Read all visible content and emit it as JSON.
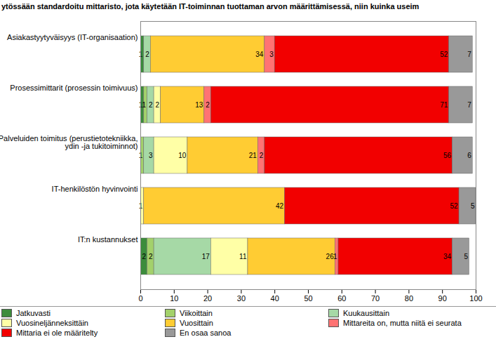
{
  "chart_data": {
    "type": "bar",
    "orientation": "horizontal",
    "stacked": true,
    "data_labels": true,
    "grid": false,
    "legend": "bottom",
    "title": "ytössään standardoitu mittaristo, jota käytetään IT-toiminnan tuottaman arvon määrittämisessä, niin kuinka useim",
    "categories": [
      "Asiakastyytyväisyys (IT-organisaation)",
      "Prosessimittarit (prosessin toimivuus)",
      "Palveluiden toimitus (perustietotekniikka, ydin -ja tukitoiminnot)",
      "IT-henkilöstön hyvinvointi",
      "IT:n kustannukset"
    ],
    "series": [
      {
        "name": "Jatkuvasti",
        "color": "#3c8c3c",
        "values": [
          1,
          1,
          0,
          0,
          2
        ]
      },
      {
        "name": "Viikoittain",
        "color": "#a3d16b",
        "values": [
          0,
          1,
          1,
          0,
          2
        ]
      },
      {
        "name": "Kuukausittain",
        "color": "#a6d9a6",
        "values": [
          2,
          2,
          3,
          0,
          17
        ]
      },
      {
        "name": "Vuosineljänneksittäin",
        "color": "#ffffa6",
        "values": [
          0,
          2,
          10,
          1,
          11
        ]
      },
      {
        "name": "Vuosittain",
        "color": "#ffcc33",
        "values": [
          34,
          13,
          21,
          42,
          26
        ]
      },
      {
        "name": "Mittareita on, mutta niitä ei seurata",
        "color": "#ff7373",
        "values": [
          3,
          2,
          2,
          0,
          1
        ]
      },
      {
        "name": "Mittaria ei ole määritelty",
        "color": "#f20000",
        "values": [
          52,
          71,
          56,
          52,
          34
        ]
      },
      {
        "name": "En osaa sanoa",
        "color": "#999999",
        "values": [
          7,
          7,
          6,
          5,
          5
        ]
      }
    ],
    "xlim": [
      0,
      100
    ],
    "xticks": [
      0,
      10,
      20,
      30,
      40,
      50,
      60,
      70,
      80,
      90,
      100
    ]
  }
}
